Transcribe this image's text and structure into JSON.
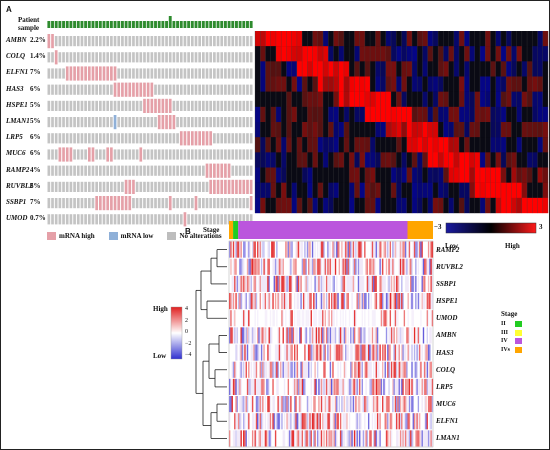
{
  "panel_a": {
    "label": "A",
    "patient_sample_label": "Patient sample",
    "genes": [
      "AMBN",
      "COLQ",
      "ELFN1",
      "HAS3",
      "HSPE1",
      "LMAN1",
      "LRP5",
      "MUC6",
      "RAMP2",
      "RUVBL2",
      "SSBP1",
      "UMOD"
    ],
    "percents": [
      "2.2%",
      "1.4%",
      "7%",
      "6%",
      "5%",
      "5%",
      "6%",
      "6%",
      "4%",
      "6%",
      "7%",
      "0.7%"
    ],
    "legend": [
      {
        "label": "mRNA high",
        "color": "#e5a0a8"
      },
      {
        "label": "mRNA low",
        "color": "#8fb0d8"
      },
      {
        "label": "No alterations",
        "color": "#bdbdbd"
      }
    ],
    "scale": {
      "min": "−3",
      "max": "3",
      "low": "Low",
      "high": "High"
    },
    "colors": {
      "high": "#e5a0a8",
      "low": "#8fb0d8",
      "none": "#c4c4c4",
      "bar": "#2e8b2e",
      "heat_low": "#1a1aa0",
      "heat_mid": "#000000",
      "heat_high": "#ff1a1a"
    }
  },
  "panel_b": {
    "label": "B",
    "stage_label": "Stage",
    "genes": [
      "RAMP2",
      "RUVBL2",
      "SSBP1",
      "HSPE1",
      "UMOD",
      "AMBN",
      "HAS3",
      "COLQ",
      "LRP5",
      "MUC6",
      "ELFN1",
      "LMAN1"
    ],
    "legend_title_high": "High",
    "legend_title_low": "Low",
    "legend_ticks": [
      "4",
      "2",
      "0",
      "−2",
      "−4"
    ],
    "stage_legend_title": "Stage",
    "stages": [
      {
        "label": "II",
        "color": "#22cc22"
      },
      {
        "label": "III",
        "color": "#ffff33"
      },
      {
        "label": "IV",
        "color": "#bb55dd"
      },
      {
        "label": "IVs",
        "color": "#ffa500"
      }
    ],
    "colors": {
      "high": "#e02020",
      "low": "#3030d0",
      "mid": "#ffffff"
    }
  }
}
